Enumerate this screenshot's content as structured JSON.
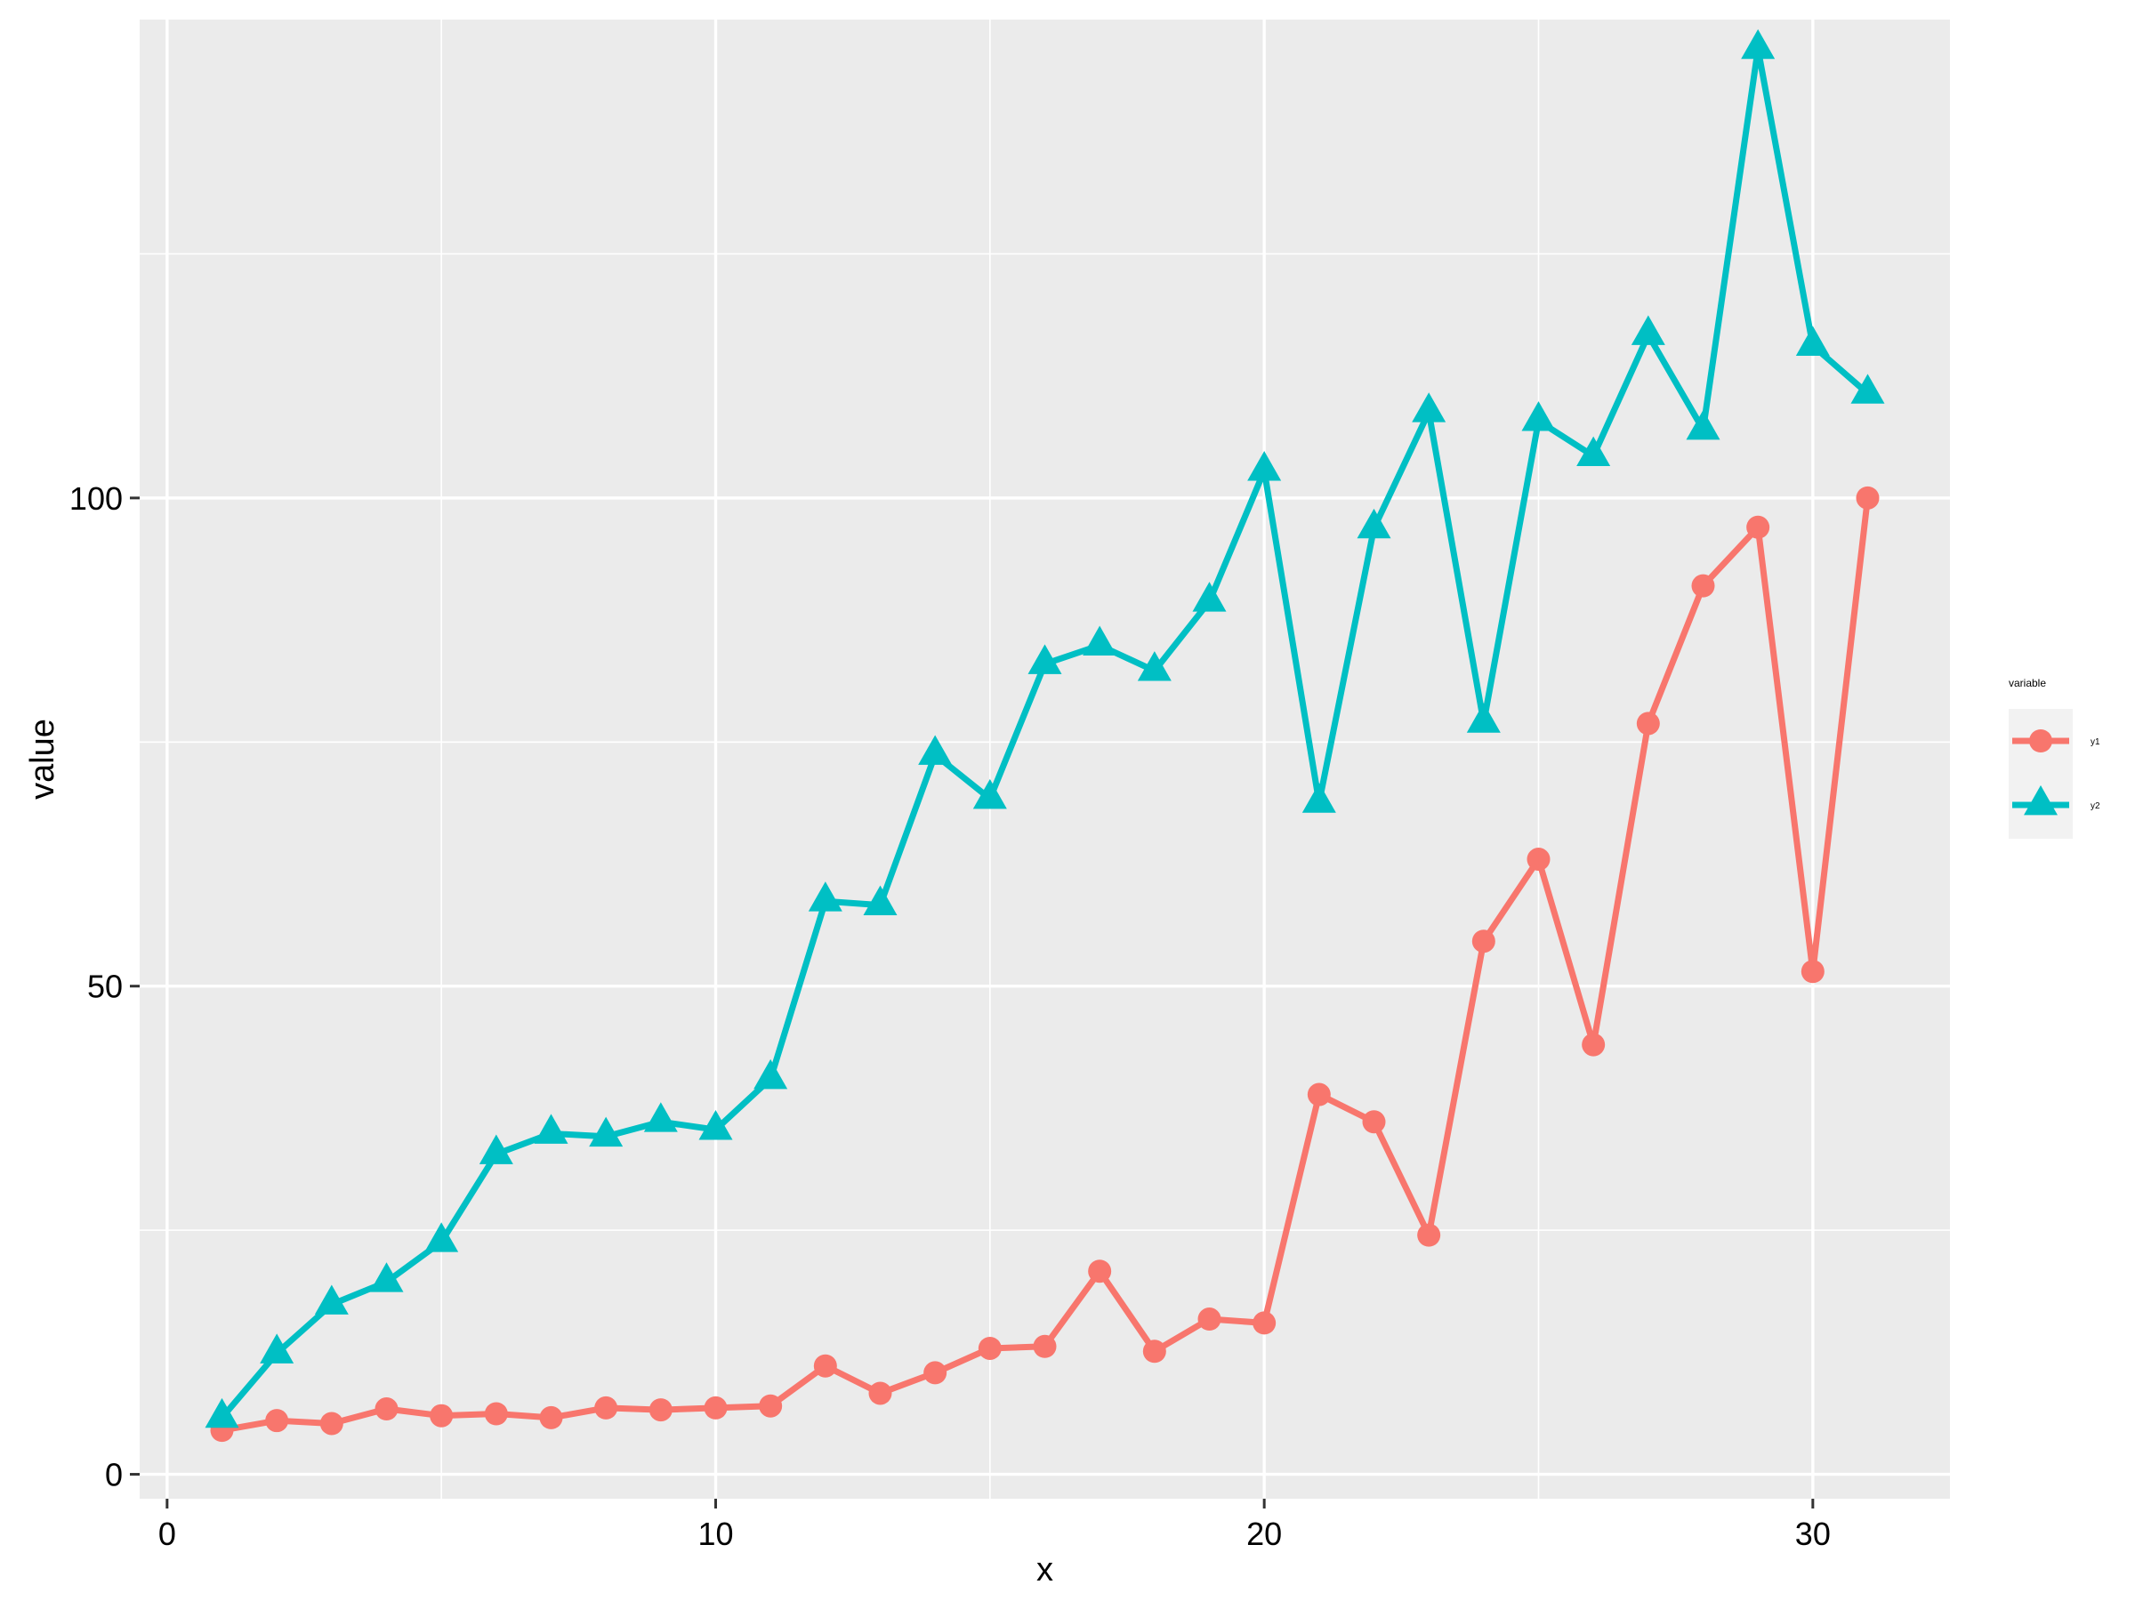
{
  "chart_data": {
    "type": "line",
    "xlabel": "x",
    "ylabel": "value",
    "xlim": [
      -0.5,
      32.5
    ],
    "ylim": [
      -2.5,
      149
    ],
    "x_ticks": [
      0,
      10,
      20,
      30
    ],
    "y_ticks": [
      0,
      50,
      100
    ],
    "grid": true,
    "legend": {
      "title": "variable",
      "placement": "right"
    },
    "x": [
      1,
      2,
      3,
      4,
      5,
      6,
      7,
      8,
      9,
      10,
      11,
      12,
      13,
      14,
      15,
      16,
      17,
      18,
      19,
      20,
      21,
      22,
      23,
      24,
      25,
      26,
      27,
      28,
      29,
      30,
      31
    ],
    "series": [
      {
        "name": "y1",
        "color": "#F8766D",
        "marker": "circle",
        "values": [
          4.5,
          5.5,
          5.2,
          6.7,
          6.0,
          6.2,
          5.8,
          6.8,
          6.6,
          6.8,
          7.0,
          11.1,
          8.3,
          10.4,
          12.9,
          13.1,
          20.8,
          12.6,
          15.9,
          15.5,
          38.9,
          36.1,
          24.5,
          54.6,
          63.0,
          44.0,
          76.9,
          91.0,
          97.0,
          51.5,
          100.0
        ]
      },
      {
        "name": "y2",
        "color": "#00BFC4",
        "marker": "triangle",
        "values": [
          5.8,
          12.4,
          17.4,
          19.7,
          23.8,
          32.8,
          34.9,
          34.6,
          36.1,
          35.3,
          40.5,
          58.7,
          58.3,
          73.7,
          69.2,
          83.0,
          84.9,
          82.3,
          89.4,
          102.8,
          68.8,
          96.9,
          108.8,
          77.0,
          107.9,
          104.3,
          116.7,
          107.0,
          146.0,
          115.6,
          110.7
        ]
      }
    ]
  }
}
